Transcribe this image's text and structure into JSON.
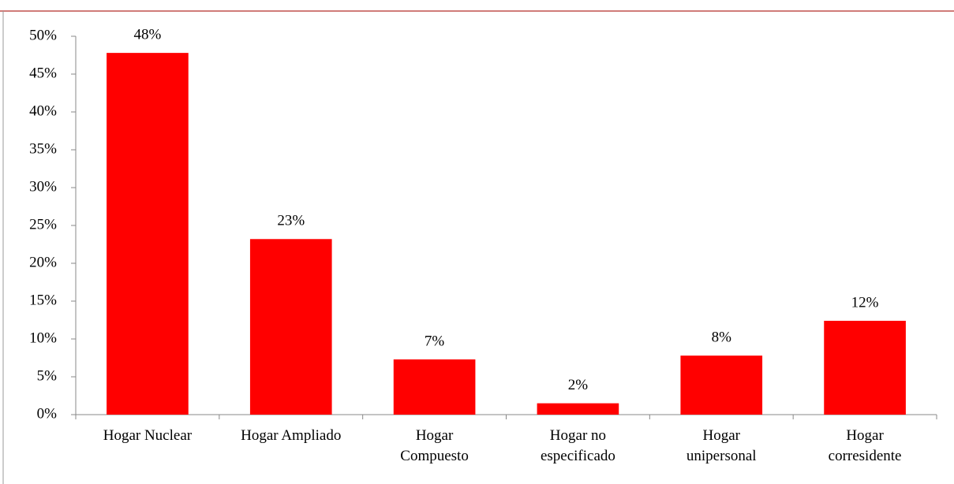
{
  "chart_data": {
    "type": "bar",
    "categories": [
      "Hogar Nuclear",
      "Hogar Ampliado",
      "Hogar\nCompuesto",
      "Hogar no\nespecificado",
      "Hogar\nunipersonal",
      "Hogar\ncorresidente"
    ],
    "values": [
      47.8,
      23.2,
      7.3,
      1.5,
      7.8,
      12.4
    ],
    "value_labels": [
      "48%",
      "23%",
      "7%",
      "2%",
      "8%",
      "12%"
    ],
    "color": "#ff0000",
    "ylim": [
      0,
      50
    ],
    "yticks": [
      {
        "value": 0,
        "label": "0%"
      },
      {
        "value": 5,
        "label": "5%"
      },
      {
        "value": 10,
        "label": "10%"
      },
      {
        "value": 15,
        "label": "15%"
      },
      {
        "value": 20,
        "label": "20%"
      },
      {
        "value": 25,
        "label": "25%"
      },
      {
        "value": 30,
        "label": "30%"
      },
      {
        "value": 35,
        "label": "35%"
      },
      {
        "value": 40,
        "label": "40%"
      },
      {
        "value": 45,
        "label": "45%"
      },
      {
        "value": 50,
        "label": "50%"
      }
    ],
    "grid": false
  }
}
